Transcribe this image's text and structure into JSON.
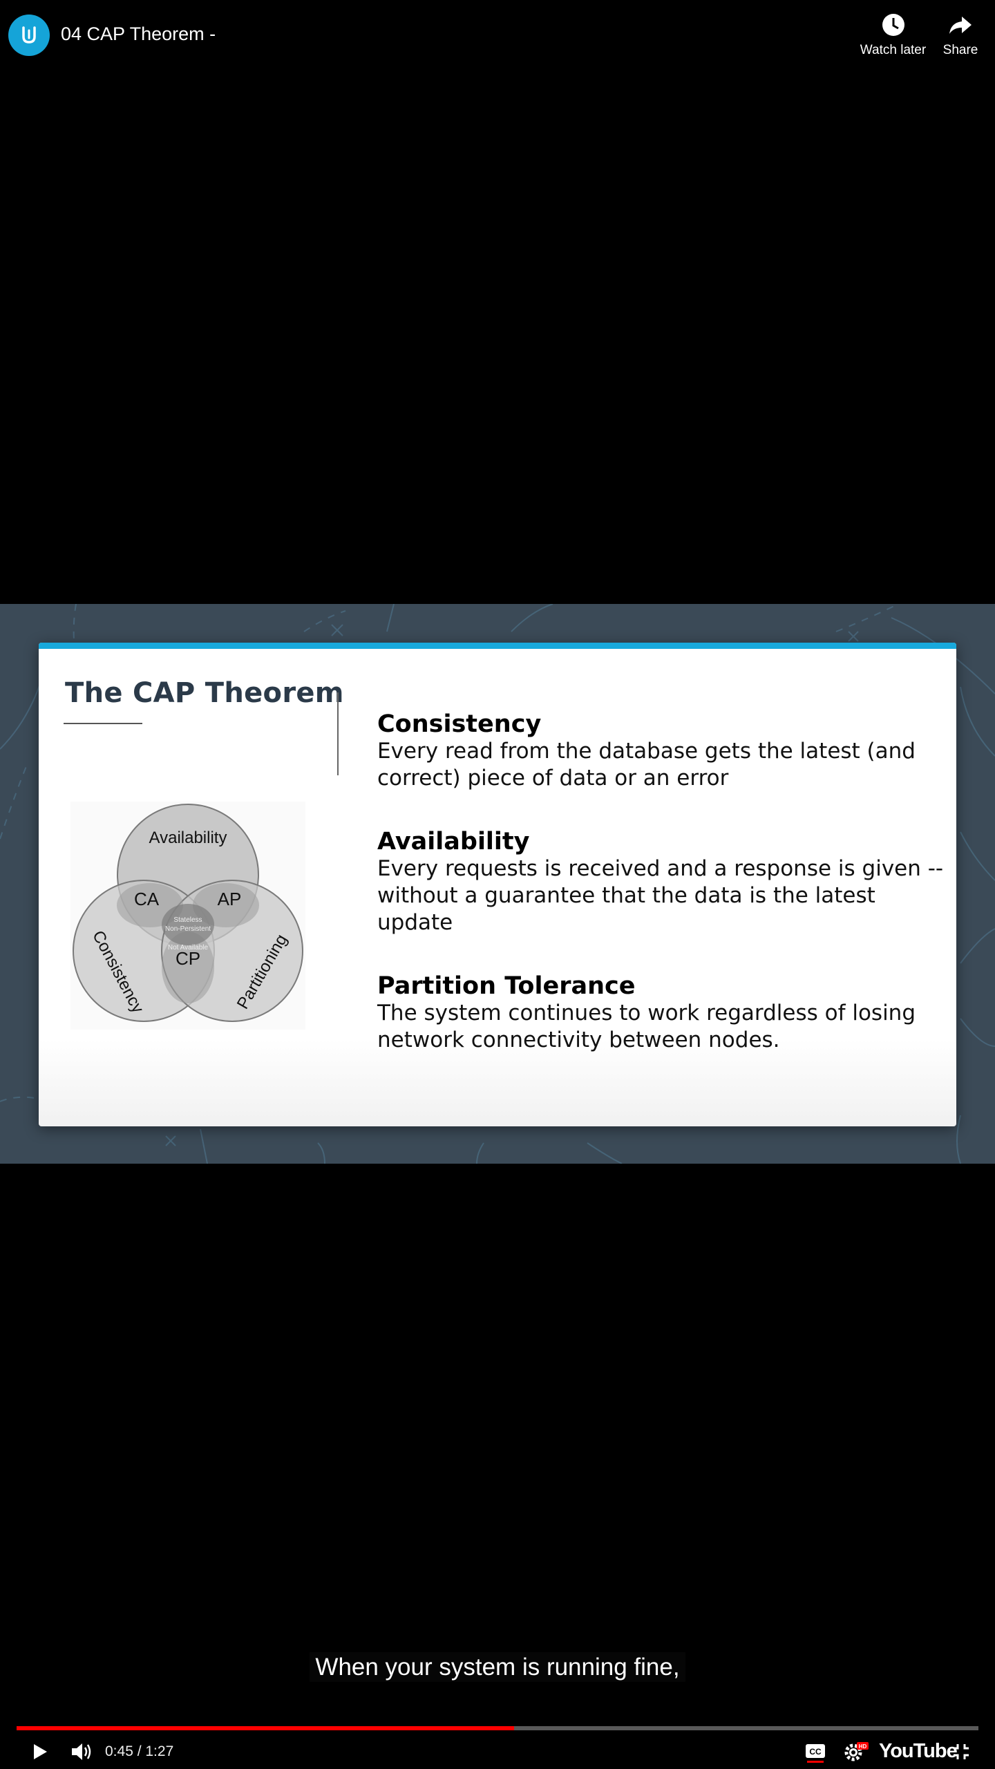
{
  "header": {
    "title": "04 CAP Theorem -",
    "watch_later_label": "Watch later",
    "share_label": "Share"
  },
  "slide": {
    "title": "The CAP Theorem",
    "venn": {
      "availability": "Availability",
      "consistency": "Consistency",
      "partitioning": "Partitioning",
      "ca": "CA",
      "ap": "AP",
      "cp": "CP",
      "center_top_line1": "Stateless",
      "center_top_line2": "Non-Persistent",
      "center_bottom": "Not Available"
    },
    "definitions": [
      {
        "title": "Consistency",
        "text": "Every read from the database gets the latest (and correct) piece of data or an error"
      },
      {
        "title": "Availability",
        "text": "Every requests is received and a response is given -- without a guarantee that the data is the latest update"
      },
      {
        "title": "Partition Tolerance",
        "text": "The system continues to work regardless of losing network connectivity between nodes."
      }
    ]
  },
  "caption": "When your system is running fine,",
  "player": {
    "time_display": "0:45 / 1:27",
    "progress_fraction": 0.5172,
    "brand": "YouTube",
    "progress_color": "#ff0000",
    "accent_color": "#18a9dc"
  }
}
